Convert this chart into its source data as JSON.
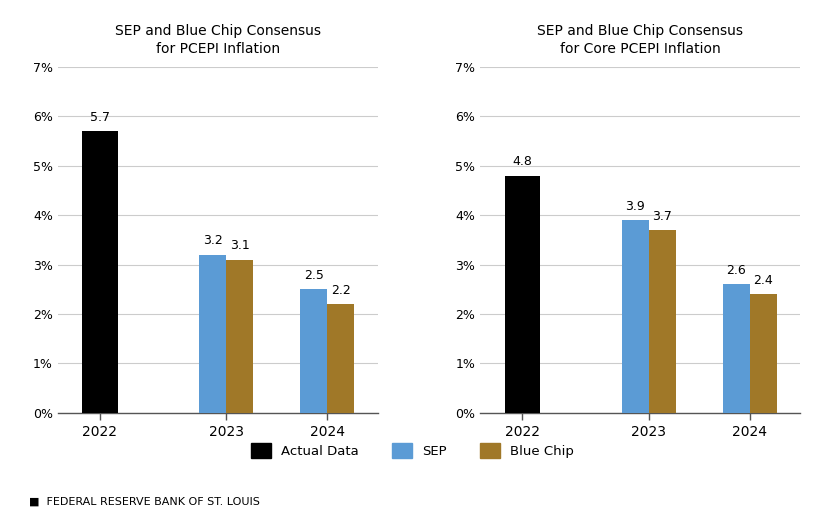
{
  "chart1": {
    "title": "SEP and Blue Chip Consensus\nfor PCEPI Inflation",
    "years": [
      "2022",
      "2023",
      "2024"
    ],
    "actual": [
      5.7,
      null,
      null
    ],
    "sep": [
      null,
      3.2,
      2.5
    ],
    "bluechip": [
      null,
      3.1,
      2.2
    ]
  },
  "chart2": {
    "title": "SEP and Blue Chip Consensus\nfor Core PCEPI Inflation",
    "years": [
      "2022",
      "2023",
      "2024"
    ],
    "actual": [
      4.8,
      null,
      null
    ],
    "sep": [
      null,
      3.9,
      2.6
    ],
    "bluechip": [
      null,
      3.7,
      2.4
    ]
  },
  "colors": {
    "actual": "#000000",
    "sep": "#5b9bd5",
    "bluechip": "#a07828"
  },
  "legend_labels": [
    "Actual Data",
    "SEP",
    "Blue Chip"
  ],
  "ylim": [
    0,
    0.07
  ],
  "yticks": [
    0,
    0.01,
    0.02,
    0.03,
    0.04,
    0.05,
    0.06,
    0.07
  ],
  "yticklabels": [
    "0%",
    "1%",
    "2%",
    "3%",
    "4%",
    "5%",
    "6%",
    "7%"
  ],
  "footer": "FEDERAL RESERVE BANK OF ST. LOUIS",
  "bar_width": 0.32,
  "single_bar_width": 0.42
}
